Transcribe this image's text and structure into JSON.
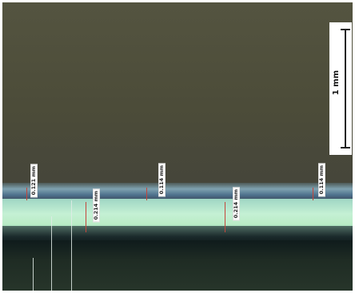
{
  "scale_bar": {
    "label": "1 mm"
  },
  "measurements": [
    {
      "label": "0.121 mm"
    },
    {
      "label": "0.214 mm"
    },
    {
      "label": "0.114 mm"
    },
    {
      "label": "0.214 mm"
    },
    {
      "label": "0.114 mm"
    }
  ],
  "colors": {
    "upper_background": "#4c4c39",
    "coating_layer": "#c5f0d4",
    "edge_blue": "#4d708c",
    "substrate": "#1f2c24",
    "measure_marker": "#c4473c"
  }
}
